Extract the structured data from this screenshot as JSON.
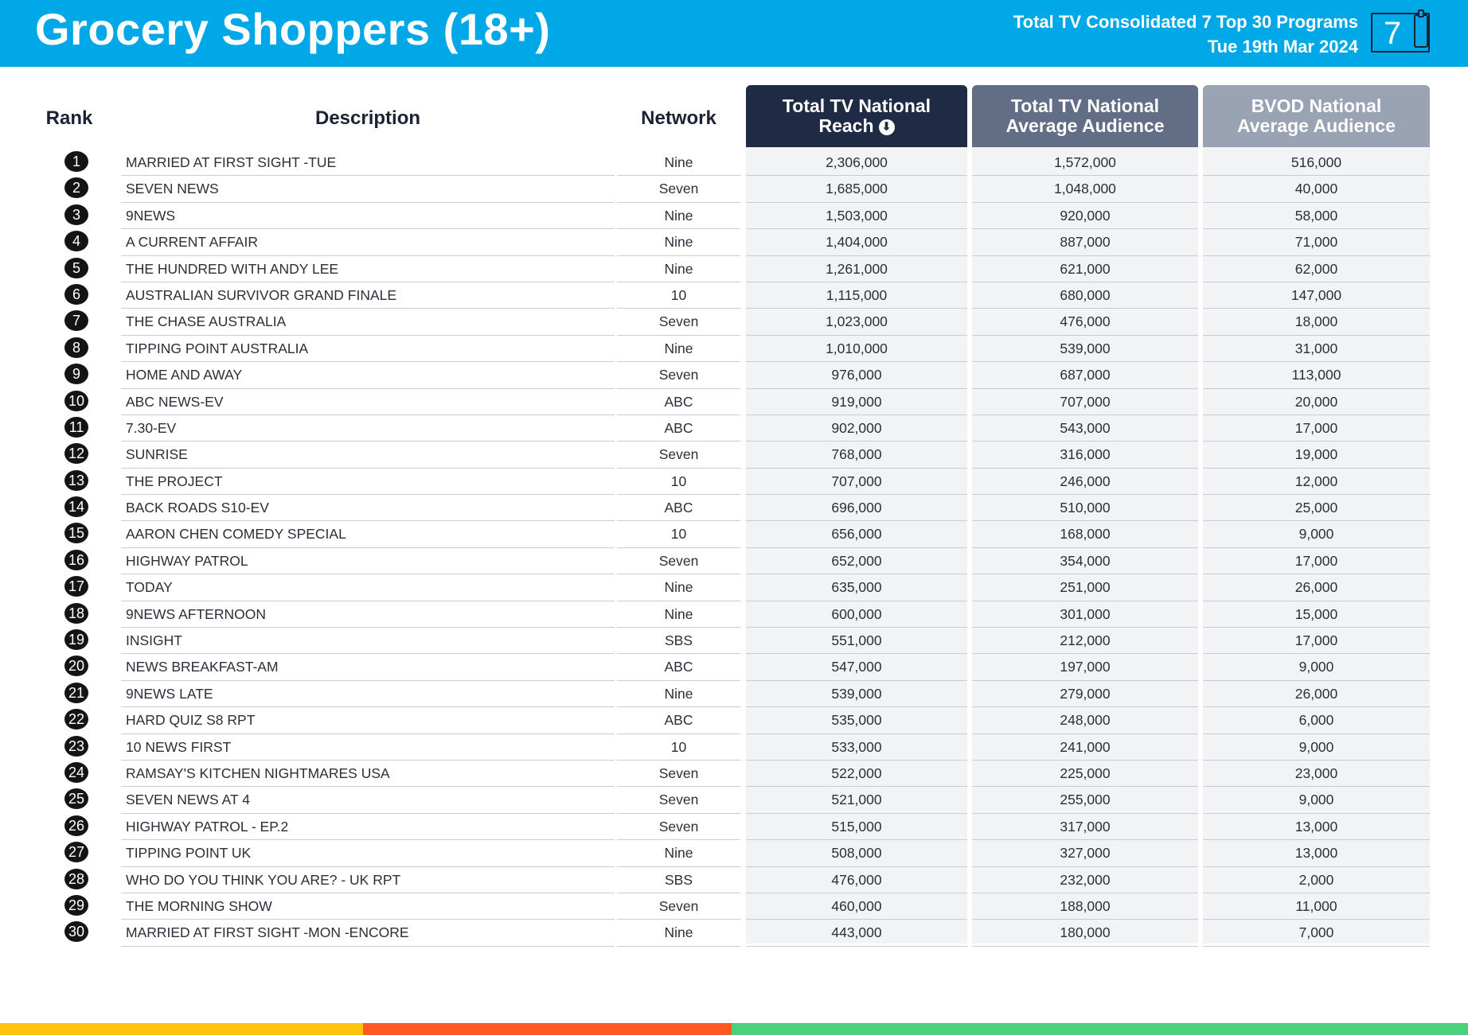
{
  "header": {
    "title": "Grocery Shoppers (18+)",
    "subtitle_line1": "Total TV Consolidated 7 Top 30 Programs",
    "subtitle_line2": "Tue 19th Mar 2024",
    "badge_number": "7",
    "badge_icon": "plug-icon"
  },
  "columns": {
    "rank": "Rank",
    "description": "Description",
    "network": "Network",
    "reach": "Total TV National Reach",
    "reach_sort_icon": "⬇",
    "avg_audience": "Total TV National Average Audience",
    "bvod_audience": "BVOD National Average Audience"
  },
  "rows": [
    {
      "rank": "1",
      "description": "MARRIED AT FIRST SIGHT -TUE",
      "network": "Nine",
      "reach": "2,306,000",
      "avg": "1,572,000",
      "bvod": "516,000"
    },
    {
      "rank": "2",
      "description": "SEVEN NEWS",
      "network": "Seven",
      "reach": "1,685,000",
      "avg": "1,048,000",
      "bvod": "40,000"
    },
    {
      "rank": "3",
      "description": "9NEWS",
      "network": "Nine",
      "reach": "1,503,000",
      "avg": "920,000",
      "bvod": "58,000"
    },
    {
      "rank": "4",
      "description": "A CURRENT AFFAIR",
      "network": "Nine",
      "reach": "1,404,000",
      "avg": "887,000",
      "bvod": "71,000"
    },
    {
      "rank": "5",
      "description": "THE HUNDRED WITH ANDY LEE",
      "network": "Nine",
      "reach": "1,261,000",
      "avg": "621,000",
      "bvod": "62,000"
    },
    {
      "rank": "6",
      "description": "AUSTRALIAN SURVIVOR GRAND FINALE",
      "network": "10",
      "reach": "1,115,000",
      "avg": "680,000",
      "bvod": "147,000"
    },
    {
      "rank": "7",
      "description": "THE CHASE AUSTRALIA",
      "network": "Seven",
      "reach": "1,023,000",
      "avg": "476,000",
      "bvod": "18,000"
    },
    {
      "rank": "8",
      "description": "TIPPING POINT AUSTRALIA",
      "network": "Nine",
      "reach": "1,010,000",
      "avg": "539,000",
      "bvod": "31,000"
    },
    {
      "rank": "9",
      "description": "HOME AND AWAY",
      "network": "Seven",
      "reach": "976,000",
      "avg": "687,000",
      "bvod": "113,000"
    },
    {
      "rank": "10",
      "description": "ABC NEWS-EV",
      "network": "ABC",
      "reach": "919,000",
      "avg": "707,000",
      "bvod": "20,000"
    },
    {
      "rank": "11",
      "description": "7.30-EV",
      "network": "ABC",
      "reach": "902,000",
      "avg": "543,000",
      "bvod": "17,000"
    },
    {
      "rank": "12",
      "description": "SUNRISE",
      "network": "Seven",
      "reach": "768,000",
      "avg": "316,000",
      "bvod": "19,000"
    },
    {
      "rank": "13",
      "description": "THE PROJECT",
      "network": "10",
      "reach": "707,000",
      "avg": "246,000",
      "bvod": "12,000"
    },
    {
      "rank": "14",
      "description": "BACK ROADS S10-EV",
      "network": "ABC",
      "reach": "696,000",
      "avg": "510,000",
      "bvod": "25,000"
    },
    {
      "rank": "15",
      "description": "AARON CHEN COMEDY SPECIAL",
      "network": "10",
      "reach": "656,000",
      "avg": "168,000",
      "bvod": "9,000"
    },
    {
      "rank": "16",
      "description": "HIGHWAY PATROL",
      "network": "Seven",
      "reach": "652,000",
      "avg": "354,000",
      "bvod": "17,000"
    },
    {
      "rank": "17",
      "description": "TODAY",
      "network": "Nine",
      "reach": "635,000",
      "avg": "251,000",
      "bvod": "26,000"
    },
    {
      "rank": "18",
      "description": "9NEWS AFTERNOON",
      "network": "Nine",
      "reach": "600,000",
      "avg": "301,000",
      "bvod": "15,000"
    },
    {
      "rank": "19",
      "description": "INSIGHT",
      "network": "SBS",
      "reach": "551,000",
      "avg": "212,000",
      "bvod": "17,000"
    },
    {
      "rank": "20",
      "description": "NEWS BREAKFAST-AM",
      "network": "ABC",
      "reach": "547,000",
      "avg": "197,000",
      "bvod": "9,000"
    },
    {
      "rank": "21",
      "description": "9NEWS LATE",
      "network": "Nine",
      "reach": "539,000",
      "avg": "279,000",
      "bvod": "26,000"
    },
    {
      "rank": "22",
      "description": "HARD QUIZ S8 RPT",
      "network": "ABC",
      "reach": "535,000",
      "avg": "248,000",
      "bvod": "6,000"
    },
    {
      "rank": "23",
      "description": "10 NEWS FIRST",
      "network": "10",
      "reach": "533,000",
      "avg": "241,000",
      "bvod": "9,000"
    },
    {
      "rank": "24",
      "description": "RAMSAY'S KITCHEN NIGHTMARES USA",
      "network": "Seven",
      "reach": "522,000",
      "avg": "225,000",
      "bvod": "23,000"
    },
    {
      "rank": "25",
      "description": "SEVEN NEWS AT 4",
      "network": "Seven",
      "reach": "521,000",
      "avg": "255,000",
      "bvod": "9,000"
    },
    {
      "rank": "26",
      "description": "HIGHWAY PATROL - EP.2",
      "network": "Seven",
      "reach": "515,000",
      "avg": "317,000",
      "bvod": "13,000"
    },
    {
      "rank": "27",
      "description": "TIPPING POINT UK",
      "network": "Nine",
      "reach": "508,000",
      "avg": "327,000",
      "bvod": "13,000"
    },
    {
      "rank": "28",
      "description": "WHO DO YOU THINK YOU ARE? - UK RPT",
      "network": "SBS",
      "reach": "476,000",
      "avg": "232,000",
      "bvod": "2,000"
    },
    {
      "rank": "29",
      "description": "THE MORNING SHOW",
      "network": "Seven",
      "reach": "460,000",
      "avg": "188,000",
      "bvod": "11,000"
    },
    {
      "rank": "30",
      "description": "MARRIED AT FIRST SIGHT -MON -ENCORE",
      "network": "Nine",
      "reach": "443,000",
      "avg": "180,000",
      "bvod": "7,000"
    }
  ],
  "colors": {
    "header_bg": "#00a8e8",
    "reach_header": "#1f2a44",
    "avg_header": "#626e85",
    "bvod_header": "#9aa3b3",
    "strip": [
      "#ffc20e",
      "#ff5a24",
      "#4cd07d"
    ]
  }
}
